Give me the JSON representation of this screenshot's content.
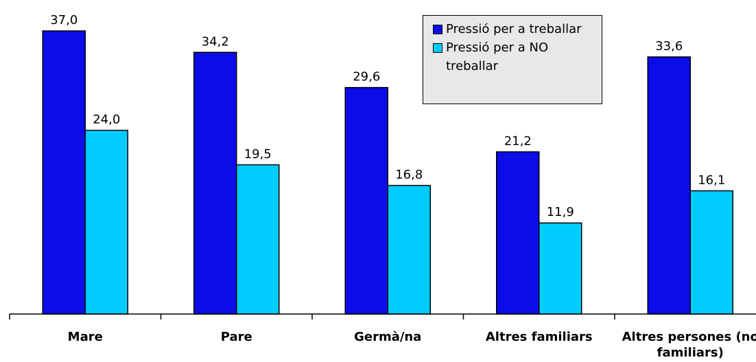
{
  "chart_data": {
    "type": "bar",
    "categories": [
      "Mare",
      "Pare",
      "Germà/na",
      "Altres familiars",
      "Altres persones (no familiars)"
    ],
    "series": [
      {
        "name": "Pressió per a treballar",
        "color": "#0c0ce8",
        "values": [
          37.0,
          34.2,
          29.6,
          21.2,
          33.6
        ],
        "value_labels": [
          "37,0",
          "34,2",
          "29,6",
          "21,2",
          "33,6"
        ]
      },
      {
        "name": "Pressió per a NO treballar",
        "color": "#00ccff",
        "values": [
          24.0,
          19.5,
          16.8,
          11.9,
          16.1
        ],
        "value_labels": [
          "24,0",
          "19,5",
          "16,8",
          "11,9",
          "16,1"
        ]
      }
    ],
    "ylim": [
      0,
      40
    ],
    "legend": "top-right"
  }
}
